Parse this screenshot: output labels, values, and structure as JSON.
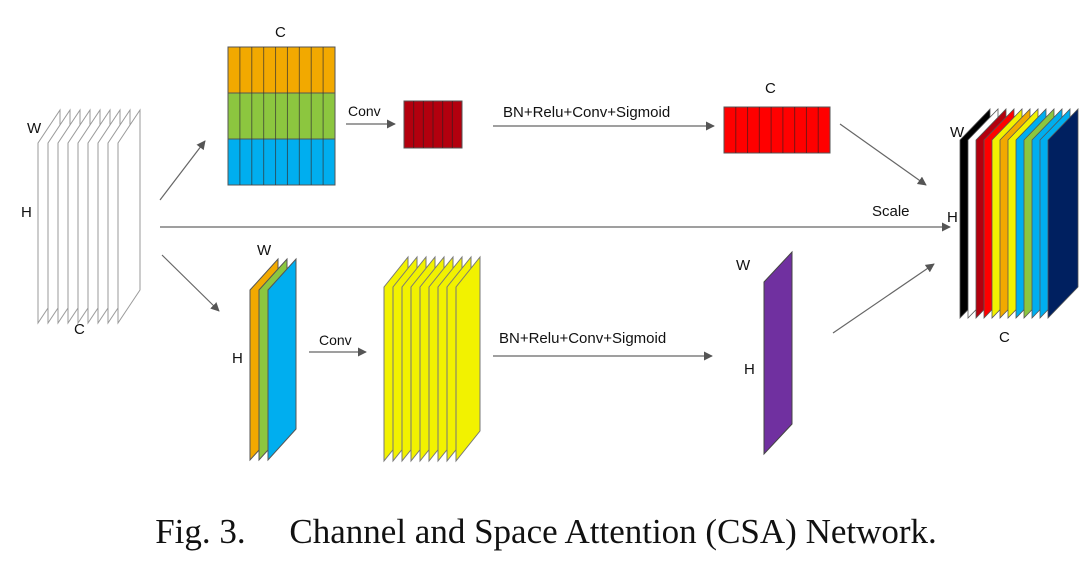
{
  "colors": {
    "orange": "#F2A900",
    "green": "#8CC63F",
    "cyan": "#00AEEF",
    "dark_red": "#B3000E",
    "red": "#FF0000",
    "yellow": "#F2F200",
    "purple": "#7030A0",
    "dark_blue": "#002060",
    "stack_outline": "#9a9a9a",
    "arrow": "#555555"
  },
  "labels": {
    "input_w": "W",
    "input_h": "H",
    "input_c": "C",
    "channel_c": "C",
    "channel_conv": "Conv",
    "channel_ops": "BN+Relu+Conv+Sigmoid",
    "channel_weight_c": "C",
    "scale": "Scale",
    "space_w": "W",
    "space_h": "H",
    "space_conv": "Conv",
    "space_ops": "BN+Relu+Conv+Sigmoid",
    "space_weight_w": "W",
    "space_weight_h": "H",
    "output_w": "W",
    "output_h": "H",
    "output_c": "C"
  },
  "caption": {
    "number": "Fig. 3.",
    "text": "Channel and Space Attention (CSA) Network."
  }
}
